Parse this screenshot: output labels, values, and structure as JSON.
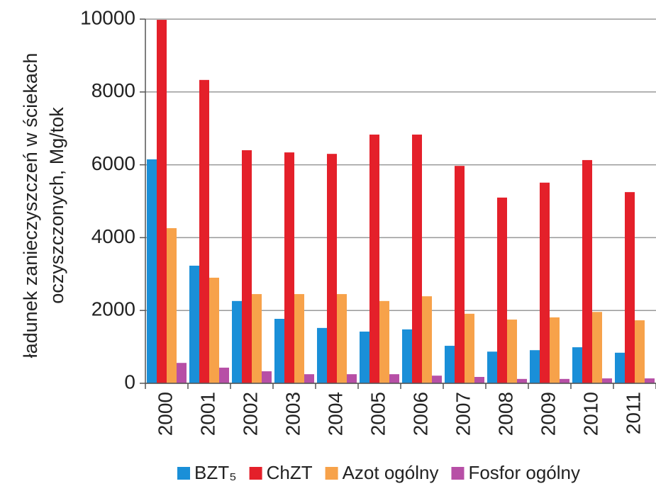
{
  "chart_data": {
    "type": "bar",
    "ylabel": [
      "ładunek zanieczyszczeń w ściekach",
      "oczyszczonych, Mg/tok"
    ],
    "categories": [
      "2000",
      "2001",
      "2002",
      "2003",
      "2004",
      "2005",
      "2006",
      "2007",
      "2008",
      "2009",
      "2010",
      "2011"
    ],
    "series": [
      {
        "name": "BZT₅",
        "color": "#1a8fd8",
        "values": [
          6150,
          3230,
          2260,
          1770,
          1520,
          1420,
          1480,
          1030,
          870,
          910,
          990,
          840
        ]
      },
      {
        "name": "ChZT",
        "color": "#e4202a",
        "values": [
          9980,
          8330,
          6400,
          6340,
          6300,
          6830,
          6830,
          5970,
          5100,
          5510,
          6130,
          5250
        ]
      },
      {
        "name": "Azot ogólny",
        "color": "#f7a24a",
        "values": [
          4260,
          2900,
          2450,
          2450,
          2450,
          2260,
          2390,
          1910,
          1750,
          1810,
          1960,
          1730
        ]
      },
      {
        "name": "Fosfor ogólny",
        "color": "#b74fa6",
        "values": [
          560,
          430,
          330,
          250,
          250,
          250,
          210,
          175,
          120,
          120,
          135,
          135
        ]
      }
    ],
    "ylim": [
      0,
      10000
    ],
    "yticks": [
      0,
      2000,
      4000,
      6000,
      8000,
      10000
    ],
    "grid": true
  }
}
